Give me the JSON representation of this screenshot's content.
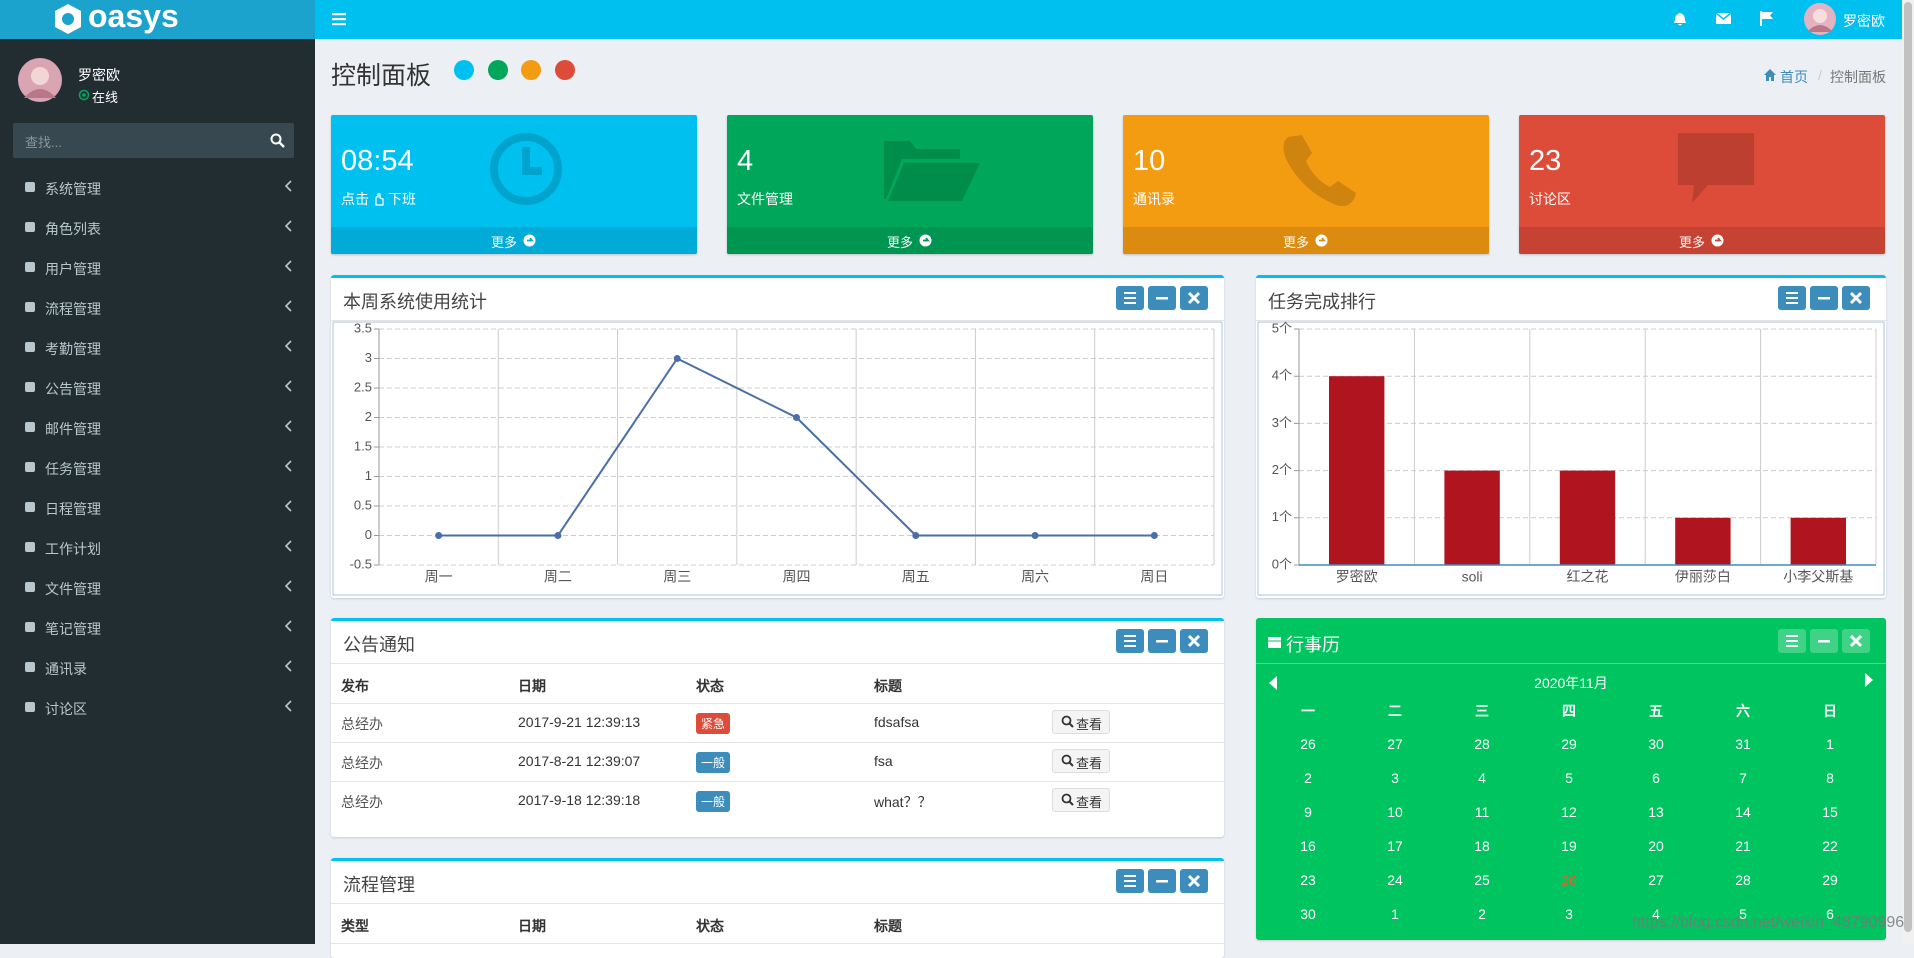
{
  "brand": "oasys",
  "topbar": {
    "user": "罗密欧"
  },
  "sidebar": {
    "user": {
      "name": "罗密欧",
      "status": "在线"
    },
    "search_placeholder": "查找...",
    "menu": [
      "系统管理",
      "角色列表",
      "用户管理",
      "流程管理",
      "考勤管理",
      "公告管理",
      "邮件管理",
      "任务管理",
      "日程管理",
      "工作计划",
      "文件管理",
      "笔记管理",
      "通讯录",
      "讨论区"
    ]
  },
  "header": {
    "title": "控制面板",
    "theme_colors": [
      "#00c0ef",
      "#00a65a",
      "#f39c12",
      "#dd4b39"
    ],
    "breadcrumb": [
      "首页",
      "控制面板"
    ]
  },
  "info_boxes": [
    {
      "value": "08:54",
      "label": [
        "点击",
        "下班"
      ],
      "more": "更多",
      "color": "#00c0ef",
      "footer_color": "#00acd7"
    },
    {
      "value": 4,
      "label": [
        "文件管理"
      ],
      "more": "更多",
      "color": "#00a65a",
      "footer_color": "#009551"
    },
    {
      "value": 10,
      "label": [
        "通讯录"
      ],
      "more": "更多",
      "color": "#f39c12",
      "footer_color": "#db8c10"
    },
    {
      "value": 23,
      "label": [
        "讨论区"
      ],
      "more": "更多",
      "color": "#dd4b39",
      "footer_color": "#c64333"
    }
  ],
  "chart_data": [
    {
      "type": "line",
      "title": "本周系统使用统计",
      "categories": [
        "周一",
        "周二",
        "周三",
        "周四",
        "周五",
        "周六",
        "周日"
      ],
      "values": [
        0,
        0,
        3,
        2,
        0,
        0,
        0
      ],
      "color": "#4a6fa8",
      "ylim": [
        -0.5,
        3.5
      ],
      "yticks": [
        -0.5,
        0,
        0.5,
        1,
        1.5,
        2,
        2.5,
        3,
        3.5
      ],
      "grid": true
    },
    {
      "type": "bar",
      "title": "任务完成排行",
      "categories": [
        "罗密欧",
        "soli",
        "红之花",
        "伊丽莎白",
        "小李父斯基"
      ],
      "values": [
        4,
        2,
        2,
        1,
        1
      ],
      "color": "#b0141e",
      "ylim": [
        0,
        5
      ],
      "yticks": [
        {
          "value": 0,
          "label": "0个"
        },
        {
          "value": 1,
          "label": "1个"
        },
        {
          "value": 2,
          "label": "2个"
        },
        {
          "value": 3,
          "label": "3个"
        },
        {
          "value": 4,
          "label": "4个"
        },
        {
          "value": 5,
          "label": "5个"
        }
      ],
      "grid": true
    }
  ],
  "notice": {
    "title": "公告通知",
    "columns": [
      "发布",
      "日期",
      "状态",
      "标题"
    ],
    "action": "查看",
    "rows": [
      {
        "cells": [
          "总经办",
          "2017-9-21 12:39:13",
          "紧急",
          "fdsafsa"
        ],
        "status_color": "#dd4b39"
      },
      {
        "cells": [
          "总经办",
          "2017-8-21 12:39:07",
          "一般",
          "fsa"
        ],
        "status_color": "#3c8dbc"
      },
      {
        "cells": [
          "总经办",
          "2017-9-18 12:39:18",
          "一般",
          "what？？"
        ],
        "status_color": "#3c8dbc"
      }
    ]
  },
  "process": {
    "title": "流程管理",
    "columns": [
      "类型",
      "日期",
      "状态",
      "标题"
    ]
  },
  "calendar": {
    "title": "行事历",
    "month": "2020年11月",
    "weekdays": [
      "一",
      "二",
      "三",
      "四",
      "五",
      "六",
      "日"
    ],
    "weeks": [
      [
        26,
        27,
        28,
        29,
        30,
        31,
        1
      ],
      [
        2,
        3,
        4,
        5,
        6,
        7,
        8
      ],
      [
        9,
        10,
        11,
        12,
        13,
        14,
        15
      ],
      [
        16,
        17,
        18,
        19,
        20,
        21,
        22
      ],
      [
        23,
        24,
        25,
        26,
        27,
        28,
        29
      ],
      [
        30,
        1,
        2,
        3,
        4,
        5,
        6
      ]
    ],
    "highlight": {
      "week": 4,
      "day": 3,
      "color": "#e8602c"
    }
  },
  "watermark": "https://blog.csdn.net/weixin_48790996"
}
